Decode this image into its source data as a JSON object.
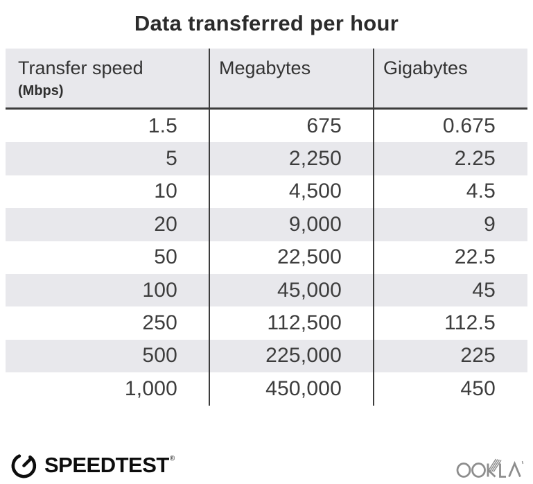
{
  "title": "Data transferred per hour",
  "table": {
    "columns": [
      {
        "label": "Transfer speed",
        "sublabel": "(Mbps)"
      },
      {
        "label": "Megabytes"
      },
      {
        "label": "Gigabytes"
      }
    ],
    "rows": [
      [
        "1.5",
        "675",
        "0.675"
      ],
      [
        "5",
        "2,250",
        "2.25"
      ],
      [
        "10",
        "4,500",
        "4.5"
      ],
      [
        "20",
        "9,000",
        "9"
      ],
      [
        "50",
        "22,500",
        "22.5"
      ],
      [
        "100",
        "45,000",
        "45"
      ],
      [
        "250",
        "112,500",
        "112.5"
      ],
      [
        "500",
        "225,000",
        "225"
      ],
      [
        "1,000",
        "450,000",
        "450"
      ]
    ]
  },
  "chart_data": {
    "type": "table",
    "title": "Data transferred per hour",
    "columns": [
      "Transfer speed (Mbps)",
      "Megabytes",
      "Gigabytes"
    ],
    "rows": [
      [
        1.5,
        675,
        0.675
      ],
      [
        5,
        2250,
        2.25
      ],
      [
        10,
        4500,
        4.5
      ],
      [
        20,
        9000,
        9
      ],
      [
        50,
        22500,
        22.5
      ],
      [
        100,
        45000,
        45
      ],
      [
        250,
        112500,
        112.5
      ],
      [
        500,
        225000,
        225
      ],
      [
        1000,
        450000,
        450
      ]
    ]
  },
  "footer": {
    "speedtest_label": "SPEEDTEST",
    "speedtest_mark": "®",
    "ookla_label": "OOKLA"
  },
  "colors": {
    "header_bg": "#e8e8ec",
    "stripe_bg": "#e8e8ec",
    "divider": "#3c3c3c",
    "title_text": "#2b2b2b",
    "cell_text": "#3d3d3d",
    "speedtest_black": "#0d0d0d",
    "ookla_gray": "#8d8d8d"
  }
}
